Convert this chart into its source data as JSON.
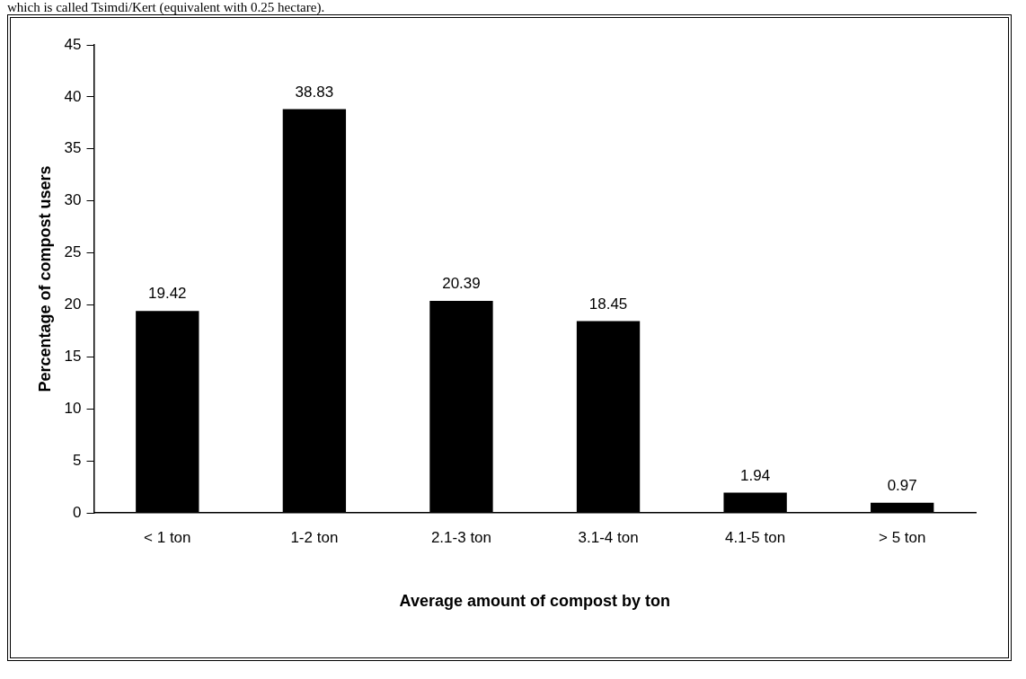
{
  "chart_data": {
    "type": "bar",
    "xlabel": "Average amount of compost by ton",
    "ylabel": "Percentage of compost users",
    "categories": [
      "< 1 ton",
      "1-2 ton",
      "2.1-3 ton",
      "3.1-4 ton",
      "4.1-5 ton",
      "> 5 ton"
    ],
    "values": [
      19.42,
      38.83,
      20.39,
      18.45,
      1.94,
      0.97
    ],
    "color": "#000000",
    "ylim": [
      0,
      45
    ],
    "yticks": [
      0,
      5,
      10,
      15,
      20,
      25,
      30,
      35,
      40,
      45
    ],
    "grid": false,
    "legend": false,
    "data_labels": true,
    "annotations": [
      "which is called Tsimdi/Kert (equivalent with 0.25 hectare)."
    ]
  }
}
